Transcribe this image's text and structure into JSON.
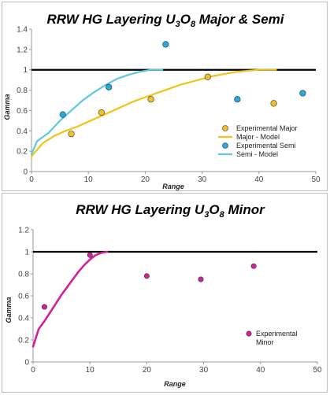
{
  "chart_data": [
    {
      "type": "scatter",
      "title": "RRW HG Layering U",
      "title_sub1": "3",
      "title_mid": "O",
      "title_sub2": "8",
      "title_tail": " Major & Semi",
      "xlabel": "Range",
      "ylabel": "Gamma",
      "xlim": [
        0,
        50
      ],
      "ylim": [
        0,
        1.4
      ],
      "xticks": [
        "0",
        "10",
        "20",
        "30",
        "40",
        "50"
      ],
      "yticks": [
        "0",
        "0.2",
        "0.4",
        "0.6",
        "0.8",
        "1",
        "1.2",
        "1.4"
      ],
      "grid": false,
      "sill": 1,
      "legend_position": "bottom-right",
      "series": [
        {
          "name": "Experimental Major",
          "kind": "points",
          "color": "#f2bf2a",
          "x": [
            7,
            12.3,
            21,
            31,
            42.6
          ],
          "y": [
            0.37,
            0.58,
            0.71,
            0.93,
            0.67
          ]
        },
        {
          "name": "Major - Model",
          "kind": "line",
          "color": "#f2c314",
          "x": [
            0,
            2,
            4,
            6,
            8,
            10,
            12,
            14,
            16,
            18,
            20,
            22,
            24,
            26,
            28,
            30,
            32,
            34,
            36,
            38,
            40,
            43
          ],
          "y": [
            0.15,
            0.28,
            0.35,
            0.4,
            0.44,
            0.49,
            0.54,
            0.59,
            0.64,
            0.69,
            0.73,
            0.77,
            0.81,
            0.85,
            0.88,
            0.91,
            0.94,
            0.96,
            0.98,
            0.99,
            1.0,
            1.0
          ]
        },
        {
          "name": "Experimental Semi",
          "kind": "points",
          "color": "#2aa8db",
          "x": [
            5.5,
            13.6,
            23.6,
            36.2,
            47.7
          ],
          "y": [
            0.56,
            0.83,
            1.25,
            0.71,
            0.77
          ]
        },
        {
          "name": "Semi - Model",
          "kind": "line",
          "color": "#5bc8e8",
          "x": [
            0,
            1,
            3,
            5,
            7,
            9,
            11,
            13,
            15,
            17,
            19,
            21,
            23
          ],
          "y": [
            0.17,
            0.3,
            0.38,
            0.5,
            0.6,
            0.7,
            0.78,
            0.85,
            0.91,
            0.95,
            0.98,
            1.0,
            1.0
          ]
        }
      ]
    },
    {
      "type": "scatter",
      "title": "RRW HG Layering U",
      "title_sub1": "3",
      "title_mid": "O",
      "title_sub2": "8",
      "title_tail": " Minor",
      "xlabel": "Range",
      "ylabel": "Gamma",
      "xlim": [
        0,
        50
      ],
      "ylim": [
        0,
        1.2
      ],
      "xticks": [
        "0",
        "10",
        "20",
        "30",
        "40",
        "50"
      ],
      "yticks": [
        "0",
        "0.2",
        "0.4",
        "0.6",
        "0.8",
        "1",
        "1.2"
      ],
      "grid": false,
      "sill": 1,
      "legend_position": "bottom-right",
      "series": [
        {
          "name": "Experimental Minor",
          "kind": "points",
          "color": "#d0229a",
          "x": [
            2,
            10,
            20,
            29.5,
            38.8
          ],
          "y": [
            0.5,
            0.97,
            0.78,
            0.75,
            0.87
          ]
        },
        {
          "name": "",
          "kind": "line",
          "color": "#d0229a",
          "x": [
            0,
            1,
            2,
            3,
            4,
            5,
            6,
            7,
            8,
            9,
            10,
            11,
            12,
            13
          ],
          "y": [
            0.14,
            0.3,
            0.37,
            0.45,
            0.53,
            0.61,
            0.68,
            0.75,
            0.82,
            0.88,
            0.93,
            0.97,
            0.99,
            1.0
          ]
        }
      ],
      "legend_lines": [
        "Experimental",
        "Minor"
      ]
    }
  ]
}
